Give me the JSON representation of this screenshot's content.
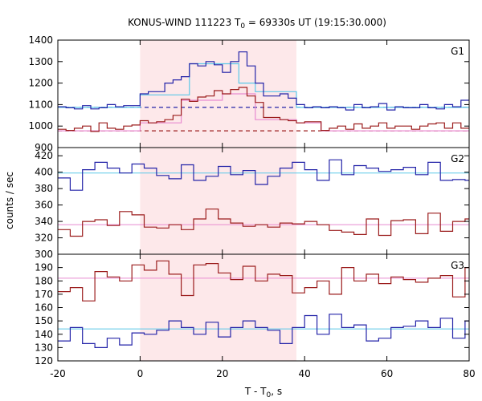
{
  "chart_data": {
    "type": "line",
    "title": "KONUS-WIND 111223 T",
    "title_sub": "0",
    "title_rest": " = 69330s UT (19:15:30.000)",
    "xlabel_main": "T - T",
    "xlabel_sub": "0",
    "xlabel_rest": ", s",
    "ylabel": "counts / sec",
    "xlim": [
      -20,
      80
    ],
    "x_ticks": [
      -20,
      0,
      20,
      40,
      60,
      80
    ],
    "highlight_interval": [
      0,
      38
    ],
    "highlight_color": "#fde8ea",
    "panels": [
      {
        "label": "G1",
        "ylim": [
          900,
          1400
        ],
        "y_ticks": [
          900,
          1000,
          1100,
          1200,
          1300,
          1400
        ],
        "series": [
          {
            "color": "#2323a8",
            "x": [
              -20,
              -18,
              -16,
              -14,
              -12,
              -10,
              -8,
              -6,
              -4,
              -2,
              0,
              2,
              4,
              6,
              8,
              10,
              12,
              14,
              16,
              18,
              20,
              22,
              24,
              26,
              28,
              30,
              32,
              34,
              36,
              38,
              40,
              42,
              44,
              46,
              48,
              50,
              52,
              54,
              56,
              58,
              60,
              62,
              64,
              66,
              68,
              70,
              72,
              74,
              76,
              78,
              80
            ],
            "y": [
              1090,
              1085,
              1080,
              1095,
              1080,
              1085,
              1100,
              1090,
              1095,
              1095,
              1150,
              1160,
              1160,
              1200,
              1215,
              1230,
              1290,
              1280,
              1300,
              1285,
              1250,
              1300,
              1345,
              1280,
              1200,
              1140,
              1140,
              1150,
              1130,
              1100,
              1085,
              1090,
              1085,
              1090,
              1085,
              1075,
              1100,
              1085,
              1090,
              1105,
              1075,
              1090,
              1085,
              1085,
              1100,
              1085,
              1080,
              1100,
              1090,
              1120,
              1120
            ]
          },
          {
            "color": "#9b1c1c",
            "x": [
              -20,
              -18,
              -16,
              -14,
              -12,
              -10,
              -8,
              -6,
              -4,
              -2,
              0,
              2,
              4,
              6,
              8,
              10,
              12,
              14,
              16,
              18,
              20,
              22,
              24,
              26,
              28,
              30,
              32,
              34,
              36,
              38,
              40,
              42,
              44,
              46,
              48,
              50,
              52,
              54,
              56,
              58,
              60,
              62,
              64,
              66,
              68,
              70,
              72,
              74,
              76,
              78,
              80
            ],
            "y": [
              985,
              980,
              990,
              1000,
              975,
              1015,
              990,
              985,
              1000,
              1005,
              1025,
              1015,
              1020,
              1030,
              1050,
              1125,
              1115,
              1135,
              1140,
              1165,
              1150,
              1170,
              1180,
              1140,
              1110,
              1040,
              1040,
              1030,
              1025,
              1015,
              1020,
              1020,
              980,
              990,
              1000,
              985,
              1010,
              990,
              1000,
              1015,
              990,
              1000,
              1000,
              985,
              1000,
              1010,
              1015,
              990,
              1015,
              990,
              990
            ]
          }
        ],
        "model_segments": [
          {
            "color": "#5bc8e8",
            "x": [
              -20,
              0,
              0,
              12,
              12,
              24,
              24,
              28,
              28,
              38,
              38,
              80
            ],
            "y": [
              1087,
              1087,
              1145,
              1145,
              1290,
              1290,
              1200,
              1200,
              1160,
              1160,
              1087,
              1087
            ]
          },
          {
            "color": "#e88ad0",
            "x": [
              -20,
              0,
              0,
              10,
              10,
              20,
              20,
              28,
              28,
              38,
              38,
              44,
              44,
              80
            ],
            "y": [
              978,
              978,
              1015,
              1015,
              1120,
              1120,
              1150,
              1150,
              1030,
              1030,
              1015,
              1015,
              978,
              978
            ]
          }
        ],
        "background_levels": [
          {
            "color": "#2323a8",
            "value": 1087,
            "style": "dashed"
          },
          {
            "color": "#9b1c1c",
            "value": 978,
            "style": "dashed"
          }
        ]
      },
      {
        "label": "G2",
        "ylim": [
          300,
          430
        ],
        "y_ticks": [
          300,
          320,
          340,
          360,
          380,
          400,
          420
        ],
        "series": [
          {
            "color": "#2323a8",
            "x": [
              -20,
              -17,
              -14,
              -11,
              -8,
              -5,
              -2,
              1,
              4,
              7,
              10,
              13,
              16,
              19,
              22,
              25,
              28,
              31,
              34,
              37,
              40,
              43,
              46,
              49,
              52,
              55,
              58,
              61,
              64,
              67,
              70,
              73,
              76,
              79,
              80
            ],
            "y": [
              393,
              378,
              403,
              412,
              405,
              399,
              410,
              405,
              396,
              392,
              409,
              390,
              395,
              407,
              397,
              402,
              385,
              395,
              405,
              412,
              403,
              390,
              415,
              397,
              408,
              405,
              401,
              403,
              406,
              397,
              412,
              390,
              391,
              390,
              390
            ],
            "dx": 3
          },
          {
            "color": "#9b1c1c",
            "x": [
              -20,
              -17,
              -14,
              -11,
              -8,
              -5,
              -2,
              1,
              4,
              7,
              10,
              13,
              16,
              19,
              22,
              25,
              28,
              31,
              34,
              37,
              40,
              43,
              46,
              49,
              52,
              55,
              58,
              61,
              64,
              67,
              70,
              73,
              76,
              79,
              80
            ],
            "y": [
              330,
              322,
              340,
              342,
              335,
              352,
              348,
              333,
              332,
              336,
              330,
              343,
              355,
              343,
              338,
              334,
              336,
              333,
              338,
              337,
              340,
              336,
              329,
              327,
              324,
              343,
              323,
              341,
              342,
              325,
              350,
              328,
              340,
              343,
              343
            ],
            "dx": 3
          }
        ],
        "level_lines": [
          {
            "color": "#5bc8e8",
            "value": 399
          },
          {
            "color": "#e88ad0",
            "value": 336
          }
        ]
      },
      {
        "label": "G3",
        "ylim": [
          120,
          200
        ],
        "y_ticks": [
          120,
          130,
          140,
          150,
          160,
          170,
          180,
          190
        ],
        "series": [
          {
            "color": "#9b1c1c",
            "x": [
              -20,
              -17,
              -14,
              -11,
              -8,
              -5,
              -2,
              1,
              4,
              7,
              10,
              13,
              16,
              19,
              22,
              25,
              28,
              31,
              34,
              37,
              40,
              43,
              46,
              49,
              52,
              55,
              58,
              61,
              64,
              67,
              70,
              73,
              76,
              79,
              80
            ],
            "y": [
              172,
              175,
              165,
              187,
              183,
              180,
              192,
              188,
              195,
              185,
              169,
              192,
              193,
              186,
              181,
              191,
              180,
              185,
              184,
              171,
              175,
              180,
              170,
              190,
              180,
              185,
              178,
              183,
              181,
              179,
              182,
              184,
              168,
              190,
              190
            ],
            "dx": 3
          },
          {
            "color": "#2323a8",
            "x": [
              -20,
              -17,
              -14,
              -11,
              -8,
              -5,
              -2,
              1,
              4,
              7,
              10,
              13,
              16,
              19,
              22,
              25,
              28,
              31,
              34,
              37,
              40,
              43,
              46,
              49,
              52,
              55,
              58,
              61,
              64,
              67,
              70,
              73,
              76,
              79,
              80
            ],
            "y": [
              135,
              145,
              133,
              130,
              137,
              132,
              141,
              140,
              143,
              150,
              145,
              140,
              149,
              138,
              145,
              150,
              145,
              143,
              133,
              145,
              154,
              140,
              155,
              145,
              147,
              135,
              137,
              145,
              146,
              150,
              145,
              152,
              137,
              150,
              150
            ],
            "dx": 3
          }
        ],
        "level_lines": [
          {
            "color": "#e88ad0",
            "value": 182
          },
          {
            "color": "#5bc8e8",
            "value": 144
          }
        ]
      }
    ]
  }
}
